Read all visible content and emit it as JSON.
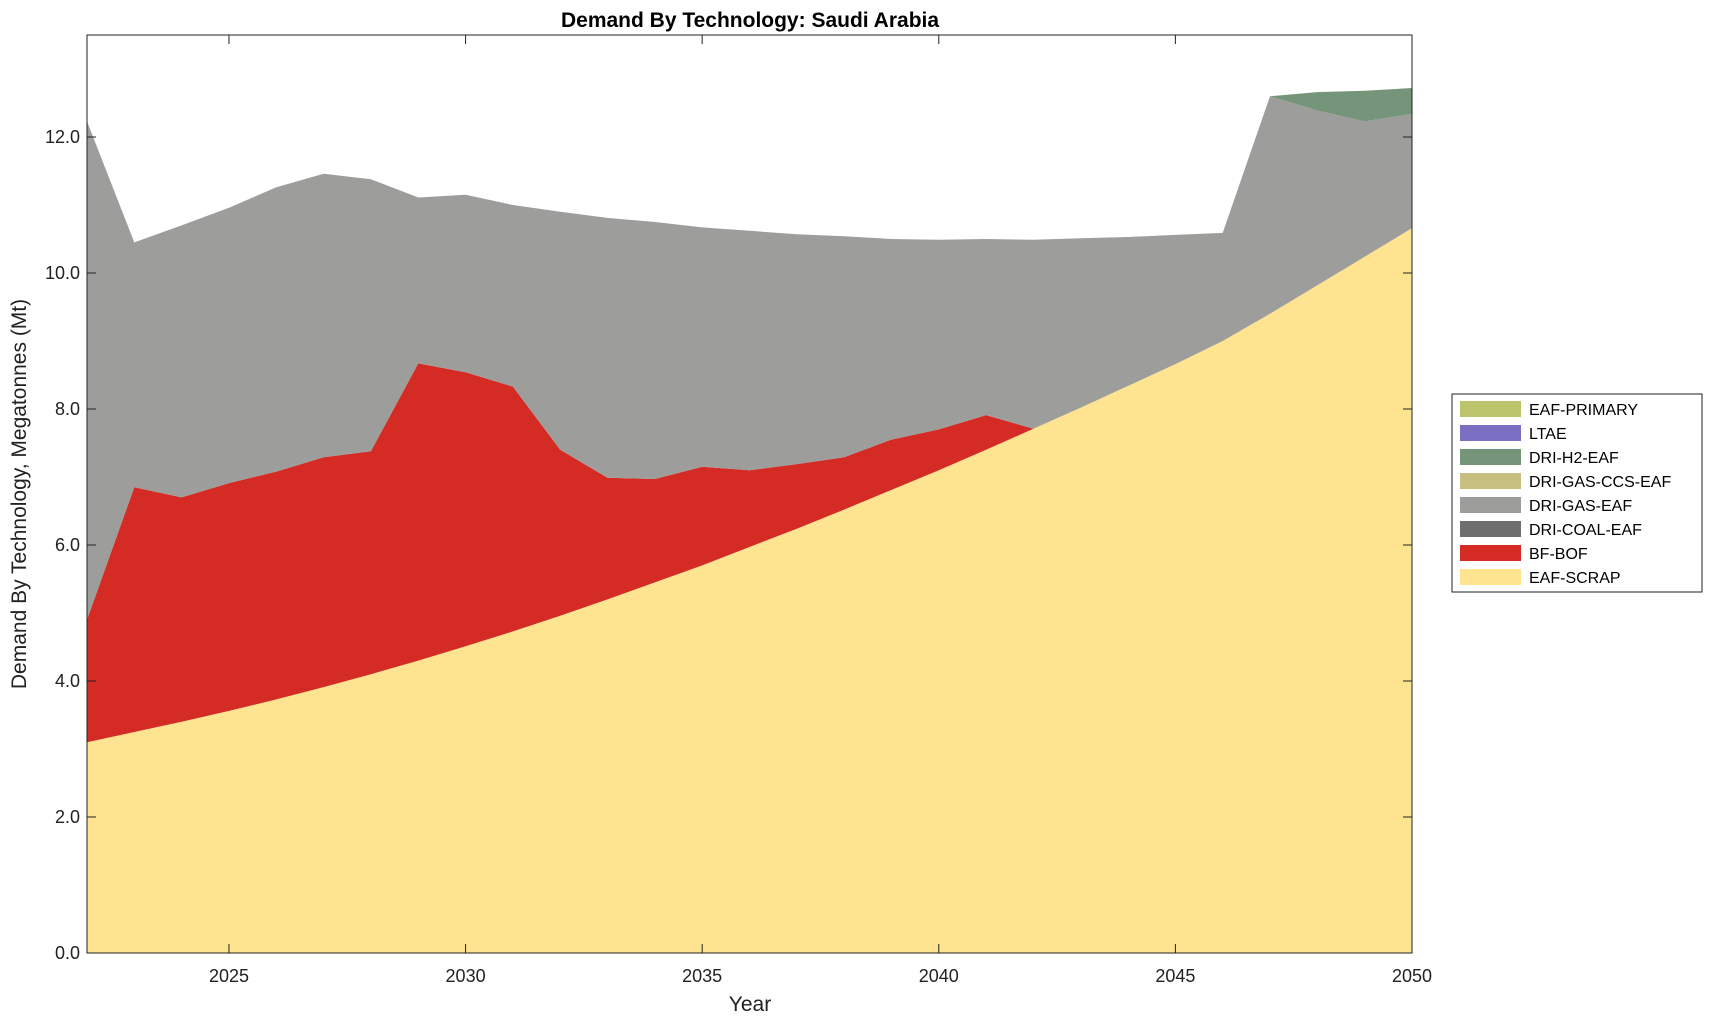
{
  "chart_data": {
    "type": "area",
    "stacked": true,
    "title": "Demand By Technology: Saudi Arabia",
    "xlabel": "Year",
    "ylabel": "Demand By Technology, Megatonnes (Mt)",
    "xlim": [
      2022,
      2050
    ],
    "ylim": [
      0,
      13.5
    ],
    "xticks": [
      2025,
      2030,
      2035,
      2040,
      2045,
      2050
    ],
    "yticks": [
      0,
      2,
      4,
      6,
      8,
      10,
      12
    ],
    "ytick_labels": [
      "0.0",
      "2.0",
      "4.0",
      "6.0",
      "8.0",
      "10.0",
      "12.0"
    ],
    "grid": false,
    "legend_position": "right",
    "x": [
      2022,
      2023,
      2024,
      2025,
      2026,
      2027,
      2028,
      2029,
      2030,
      2031,
      2032,
      2033,
      2034,
      2035,
      2036,
      2037,
      2038,
      2039,
      2040,
      2041,
      2042,
      2043,
      2044,
      2045,
      2046,
      2047,
      2048,
      2049,
      2050
    ],
    "series": [
      {
        "name": "EAF-SCRAP",
        "color": "#FEE391",
        "values": [
          3.1,
          3.25,
          3.4,
          3.56,
          3.73,
          3.91,
          4.1,
          4.3,
          4.51,
          4.73,
          4.96,
          5.2,
          5.45,
          5.7,
          5.97,
          6.24,
          6.52,
          6.81,
          7.1,
          7.4,
          7.71,
          8.02,
          8.34,
          8.66,
          9.0,
          9.4,
          9.82,
          10.24,
          10.66
        ]
      },
      {
        "name": "BF-BOF",
        "color": "#D42B24",
        "values": [
          1.8,
          3.6,
          3.3,
          3.35,
          3.35,
          3.38,
          3.28,
          4.37,
          4.03,
          3.6,
          2.44,
          1.79,
          1.52,
          1.45,
          1.13,
          0.95,
          0.77,
          0.74,
          0.6,
          0.51,
          0,
          0,
          0,
          0,
          0,
          0,
          0,
          0,
          0
        ]
      },
      {
        "name": "DRI-COAL-EAF",
        "color": "#6E6E6E",
        "values": [
          0,
          0,
          0,
          0,
          0,
          0,
          0,
          0,
          0,
          0,
          0,
          0,
          0,
          0,
          0,
          0,
          0,
          0,
          0,
          0,
          0,
          0,
          0,
          0,
          0,
          0,
          0,
          0,
          0
        ]
      },
      {
        "name": "DRI-GAS-EAF",
        "color": "#9D9D9B",
        "values": [
          7.33,
          3.6,
          4.0,
          4.05,
          4.18,
          4.17,
          4.0,
          2.44,
          2.61,
          2.67,
          3.5,
          3.82,
          3.78,
          3.52,
          3.52,
          3.38,
          3.25,
          2.95,
          2.79,
          2.59,
          2.78,
          2.49,
          2.19,
          1.9,
          1.59,
          3.2,
          2.57,
          1.99,
          1.68
        ]
      },
      {
        "name": "DRI-GAS-CCS-EAF",
        "color": "#C7BF80",
        "values": [
          0,
          0,
          0,
          0,
          0,
          0,
          0,
          0,
          0,
          0,
          0,
          0,
          0,
          0,
          0,
          0,
          0,
          0,
          0,
          0,
          0,
          0,
          0,
          0,
          0,
          0,
          0,
          0,
          0
        ]
      },
      {
        "name": "DRI-H2-EAF",
        "color": "#749579",
        "values": [
          0,
          0,
          0,
          0,
          0,
          0,
          0,
          0,
          0,
          0,
          0,
          0,
          0,
          0,
          0,
          0,
          0,
          0,
          0,
          0,
          0,
          0,
          0,
          0,
          0,
          0,
          0.27,
          0.45,
          0.38
        ]
      },
      {
        "name": "LTAE",
        "color": "#7A6FC2",
        "values": [
          0,
          0,
          0,
          0,
          0,
          0,
          0,
          0,
          0,
          0,
          0,
          0,
          0,
          0,
          0,
          0,
          0,
          0,
          0,
          0,
          0,
          0,
          0,
          0,
          0,
          0,
          0,
          0,
          0
        ]
      },
      {
        "name": "EAF-PRIMARY",
        "color": "#BBC46A",
        "values": [
          0,
          0,
          0,
          0,
          0,
          0,
          0,
          0,
          0,
          0,
          0,
          0,
          0,
          0,
          0,
          0,
          0,
          0,
          0,
          0,
          0,
          0,
          0,
          0,
          0,
          0,
          0,
          0,
          0
        ]
      }
    ],
    "legend_order": [
      "EAF-PRIMARY",
      "LTAE",
      "DRI-H2-EAF",
      "DRI-GAS-CCS-EAF",
      "DRI-GAS-EAF",
      "DRI-COAL-EAF",
      "BF-BOF",
      "EAF-SCRAP"
    ]
  }
}
